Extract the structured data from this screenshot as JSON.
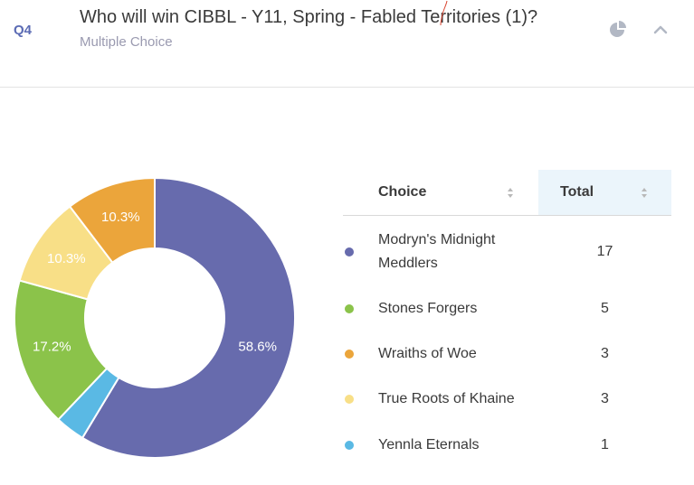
{
  "question": {
    "number": "Q4",
    "title": "Who will win CIBBL - Y11, Spring - Fabled Territories (1)?",
    "type": "Multiple Choice"
  },
  "icons": {
    "chart_toggle": "pie-chart-icon",
    "collapse": "chevron-up-icon",
    "sort": "sort-icon"
  },
  "table": {
    "header_choice": "Choice",
    "header_total": "Total",
    "rows": [
      {
        "label": "Modryn's Midnight Meddlers",
        "total": "17",
        "color": "#676bad"
      },
      {
        "label": "Stones Forgers",
        "total": "5",
        "color": "#8bc34a"
      },
      {
        "label": "Wraiths of Woe",
        "total": "3",
        "color": "#eba53b"
      },
      {
        "label": "True Roots of Khaine",
        "total": "3",
        "color": "#f8df87"
      },
      {
        "label": "Yennla Eternals",
        "total": "1",
        "color": "#5ab9e4"
      }
    ]
  },
  "chart_data": {
    "type": "pie",
    "style": "donut",
    "labels": [
      "Modryn's Midnight Meddlers",
      "Yennla Eternals",
      "Stones Forgers",
      "True Roots of Khaine",
      "Wraiths of Woe"
    ],
    "values": [
      17,
      1,
      5,
      3,
      3
    ],
    "percent_labels": [
      "58.6%",
      "",
      "17.2%",
      "10.3%",
      "10.3%"
    ],
    "colors": [
      "#676bad",
      "#5ab9e4",
      "#8bc34a",
      "#f8df87",
      "#eba53b"
    ],
    "start": "top, clockwise"
  }
}
